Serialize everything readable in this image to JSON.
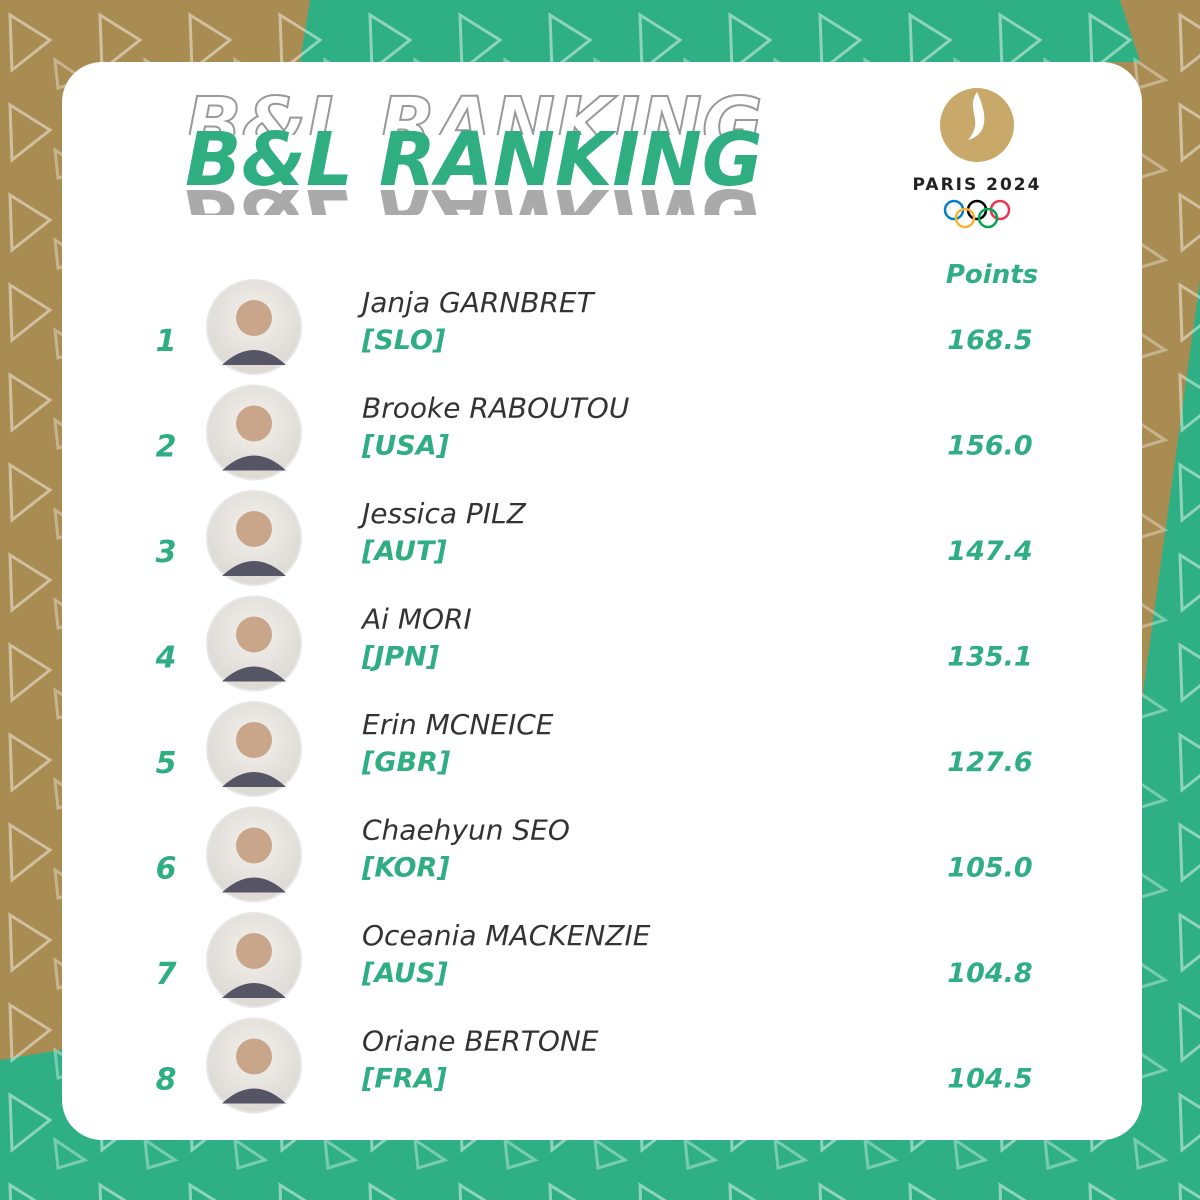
{
  "header": {
    "title": "B&L RANKING",
    "points_label": "Points"
  },
  "logo": {
    "text": "PARIS 2024"
  },
  "rows": [
    {
      "rank": "1",
      "name": "Janja GARNBRET",
      "country": "[SLO]",
      "points": "168.5"
    },
    {
      "rank": "2",
      "name": "Brooke RABOUTOU",
      "country": "[USA]",
      "points": "156.0"
    },
    {
      "rank": "3",
      "name": "Jessica PILZ",
      "country": "[AUT]",
      "points": "147.4"
    },
    {
      "rank": "4",
      "name": "Ai MORI",
      "country": "[JPN]",
      "points": "135.1"
    },
    {
      "rank": "5",
      "name": "Erin MCNEICE",
      "country": "[GBR]",
      "points": "127.6"
    },
    {
      "rank": "6",
      "name": "Chaehyun SEO",
      "country": "[KOR]",
      "points": "105.0"
    },
    {
      "rank": "7",
      "name": "Oceania MACKENZIE",
      "country": "[AUS]",
      "points": "104.8"
    },
    {
      "rank": "8",
      "name": "Oriane BERTONE",
      "country": "[FRA]",
      "points": "104.5"
    }
  ]
}
